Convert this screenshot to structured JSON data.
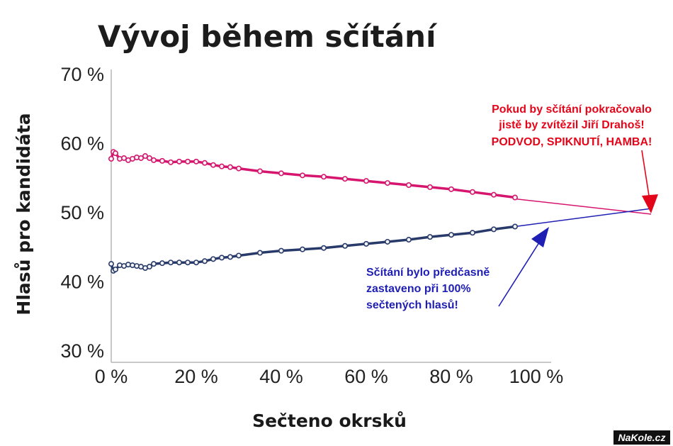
{
  "chart_data": {
    "type": "line",
    "title": "Vývoj během sčítání",
    "xlabel": "Sečteno okrsků",
    "ylabel": "Hlasů pro kandidáta",
    "x_ticks": [
      "0 %",
      "20 %",
      "40 %",
      "60 %",
      "80 %",
      "100 %"
    ],
    "y_ticks": [
      "30 %",
      "40 %",
      "50 %",
      "60 %",
      "70 %"
    ],
    "xlim": [
      0,
      100
    ],
    "ylim": [
      30,
      70
    ],
    "series": [
      {
        "color": "#d6156e",
        "x": [
          0,
          0.5,
          1,
          2,
          3,
          4,
          5,
          6,
          7,
          8,
          9,
          10,
          12,
          14,
          16,
          18,
          20,
          22,
          24,
          26,
          28,
          30,
          35,
          40,
          45,
          50,
          55,
          60,
          65,
          70,
          75,
          80,
          85,
          90,
          95
        ],
        "y": [
          57.8,
          58.8,
          58.6,
          57.8,
          57.9,
          57.6,
          57.8,
          58.0,
          57.9,
          58.2,
          57.9,
          57.6,
          57.5,
          57.3,
          57.4,
          57.4,
          57.4,
          57.2,
          56.9,
          56.7,
          56.6,
          56.4,
          56.0,
          55.7,
          55.4,
          55.2,
          54.9,
          54.6,
          54.3,
          54.0,
          53.7,
          53.4,
          53.0,
          52.6,
          52.2
        ]
      },
      {
        "color": "#283a6a",
        "x": [
          0,
          0.5,
          1,
          2,
          3,
          4,
          5,
          6,
          7,
          8,
          9,
          10,
          12,
          14,
          16,
          18,
          20,
          22,
          24,
          26,
          28,
          30,
          35,
          40,
          45,
          50,
          55,
          60,
          65,
          70,
          75,
          80,
          85,
          90,
          95
        ],
        "y": [
          42.6,
          41.6,
          41.8,
          42.4,
          42.3,
          42.5,
          42.4,
          42.3,
          42.2,
          42.0,
          42.2,
          42.6,
          42.7,
          42.8,
          42.8,
          42.8,
          42.8,
          43.0,
          43.3,
          43.5,
          43.6,
          43.8,
          44.2,
          44.5,
          44.7,
          44.9,
          45.2,
          45.5,
          45.8,
          46.1,
          46.5,
          46.8,
          47.1,
          47.6,
          48.0
        ]
      }
    ],
    "extrapolation": [
      {
        "color": "#d6156e",
        "x": [
          95,
          127
        ],
        "y": [
          52.0,
          49.8
        ]
      },
      {
        "color": "#1f1fb4",
        "x": [
          95,
          127
        ],
        "y": [
          48.0,
          50.6
        ]
      }
    ],
    "annotations": {
      "red_lines": [
        "Pokud by sčítání pokračovalo",
        "jistě by zvítězil Jiří Drahoš!",
        "PODVOD, SPIKNUTÍ, HAMBA!"
      ],
      "red_color": "#e3061a",
      "blue_lines": [
        "Sčítání bylo předčasně",
        "zastaveno při 100%",
        "sečtených hlasů!"
      ],
      "blue_color": "#1f1fb4"
    },
    "watermark": "NaKole.cz"
  }
}
